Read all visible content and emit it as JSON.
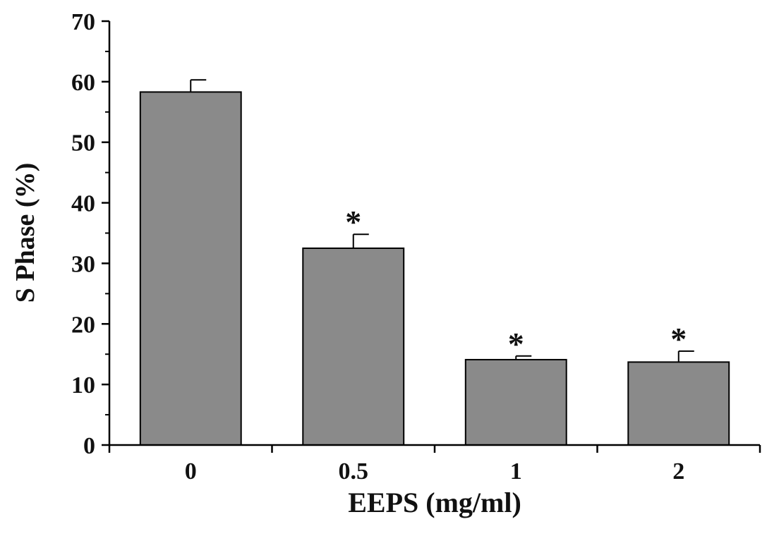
{
  "chart_data": {
    "type": "bar",
    "categories": [
      "0",
      "0.5",
      "1",
      "2"
    ],
    "values": [
      58.3,
      32.5,
      14.1,
      13.7
    ],
    "errors": [
      2.0,
      2.3,
      0.6,
      1.8
    ],
    "significance": [
      "",
      "*",
      "*",
      "*"
    ],
    "title": "",
    "xlabel": "EEPS (mg/ml)",
    "ylabel": "S Phase (%)",
    "ylim": [
      0,
      70
    ],
    "yticks": [
      0,
      10,
      20,
      30,
      40,
      50,
      60,
      70
    ],
    "grid": false,
    "legend": "none",
    "bar_color": "#8a8a8a",
    "edge_color": "#000000"
  }
}
